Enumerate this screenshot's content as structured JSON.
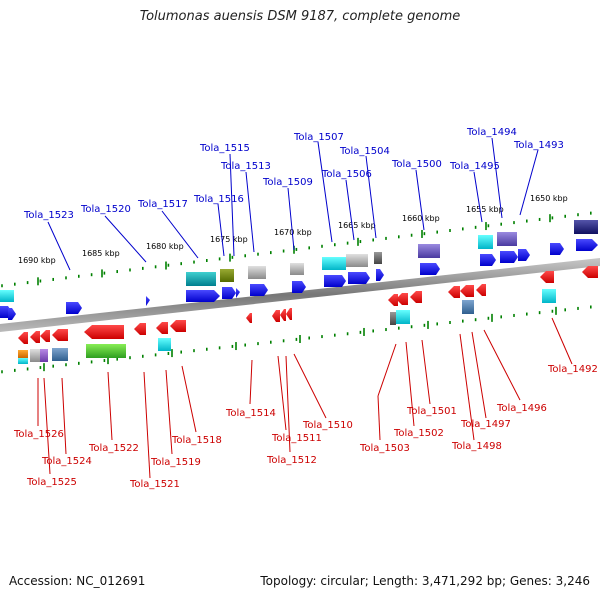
{
  "title": "Tolumonas auensis DSM 9187, complete genome",
  "accession": "Accession: NC_012691",
  "summary": "Topology: circular; Length: 3,471,292 bp; Genes: 3,246",
  "colors": {
    "forward_label": "#0000cc",
    "reverse_label": "#cc0000",
    "tick": "#008000"
  },
  "scale_ticks": [
    "1690 kbp",
    "1685 kbp",
    "1680 kbp",
    "1675 kbp",
    "1670 kbp",
    "1665 kbp",
    "1660 kbp",
    "1655 kbp",
    "1650 kbp"
  ],
  "forward_labels": [
    "Tola_1523",
    "Tola_1520",
    "Tola_1517",
    "Tola_1516",
    "Tola_1515",
    "Tola_1513",
    "Tola_1509",
    "Tola_1507",
    "Tola_1506",
    "Tola_1504",
    "Tola_1500",
    "Tola_1495",
    "Tola_1494",
    "Tola_1493"
  ],
  "reverse_labels": [
    "Tola_1526",
    "Tola_1524",
    "Tola_1525",
    "Tola_1522",
    "Tola_1521",
    "Tola_1519",
    "Tola_1518",
    "Tola_1514",
    "Tola_1511",
    "Tola_1512",
    "Tola_1510",
    "Tola_1503",
    "Tola_1502",
    "Tola_1501",
    "Tola_1498",
    "Tola_1497",
    "Tola_1496",
    "Tola_1492"
  ]
}
